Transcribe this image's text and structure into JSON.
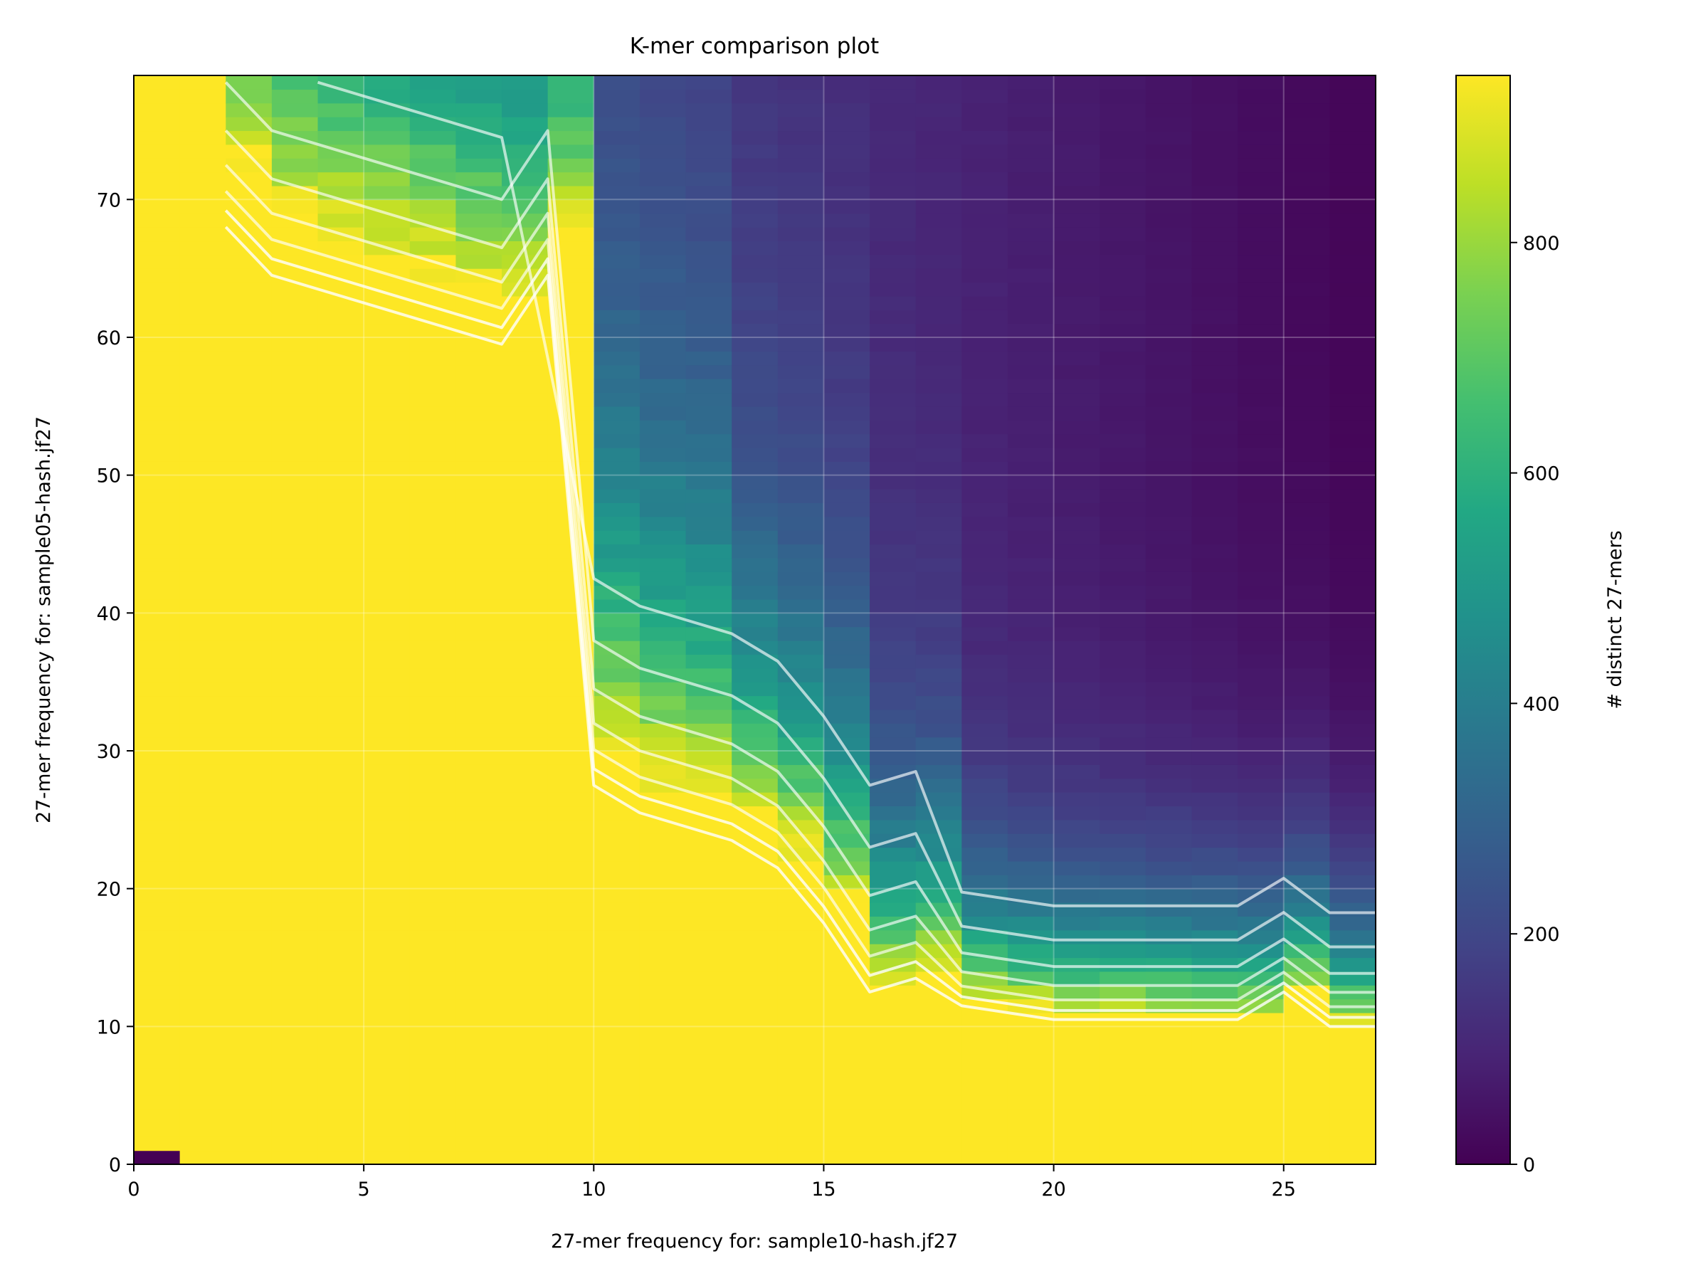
{
  "chart_data": {
    "type": "heatmap",
    "title": "K-mer comparison plot",
    "xlabel": "27-mer frequency for: sample10-hash.jf27",
    "ylabel": "27-mer frequency for: sample05-hash.jf27",
    "xlim": [
      0,
      27
    ],
    "ylim": [
      0,
      79
    ],
    "xticks": [
      0,
      5,
      10,
      15,
      20,
      25
    ],
    "yticks": [
      0,
      10,
      20,
      30,
      40,
      50,
      60,
      70
    ],
    "colorbar": {
      "label": "# distinct 27-mers",
      "ticks": [
        0,
        200,
        400,
        600,
        800
      ],
      "range": [
        0,
        945
      ],
      "colormap": "viridis"
    },
    "grid": true,
    "contour_color": "#ffffff",
    "zero_cell": {
      "x": 0,
      "y": 0,
      "value": 0
    },
    "saturated_boundary": [
      {
        "x": 2,
        "y": 68
      },
      {
        "x": 3,
        "y": 64
      },
      {
        "x": 4,
        "y": 63
      },
      {
        "x": 5,
        "y": 62
      },
      {
        "x": 6,
        "y": 61
      },
      {
        "x": 7,
        "y": 60
      },
      {
        "x": 8,
        "y": 59
      },
      {
        "x": 9,
        "y": 64
      },
      {
        "x": 10,
        "y": 27
      },
      {
        "x": 11,
        "y": 25
      },
      {
        "x": 12,
        "y": 24
      },
      {
        "x": 13,
        "y": 23
      },
      {
        "x": 14,
        "y": 21
      },
      {
        "x": 15,
        "y": 17
      },
      {
        "x": 16,
        "y": 12
      },
      {
        "x": 17,
        "y": 13
      },
      {
        "x": 18,
        "y": 11
      },
      {
        "x": 19,
        "y": 10.5
      },
      {
        "x": 20,
        "y": 10
      },
      {
        "x": 21,
        "y": 10
      },
      {
        "x": 22,
        "y": 10
      },
      {
        "x": 23,
        "y": 10
      },
      {
        "x": 24,
        "y": 10
      },
      {
        "x": 25,
        "y": 12
      },
      {
        "x": 26,
        "y": 9.5
      }
    ]
  }
}
